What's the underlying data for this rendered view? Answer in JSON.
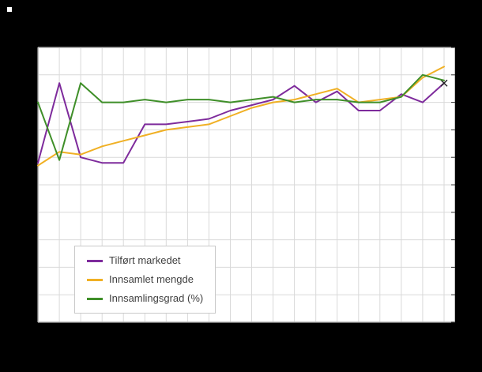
{
  "page": {
    "background": "#000000",
    "plot_background": "#ffffff",
    "grid_color": "#d9d9d9",
    "border_color": "#bdbdbd",
    "tick_color": "#333333",
    "marker_color": "#222222"
  },
  "chart_data": {
    "type": "line",
    "x": [
      1,
      2,
      3,
      4,
      5,
      6,
      7,
      8,
      9,
      10,
      11,
      12,
      13,
      14,
      15,
      16,
      17,
      18,
      19,
      20
    ],
    "x_tick_labels_visible": false,
    "ylim": [
      0,
      100
    ],
    "ytick_step": 10,
    "ytick_labels_visible": false,
    "grid": true,
    "legend_position": "inside-bottom-left",
    "series": [
      {
        "name": "Tilført markedet",
        "color": "#7e2b9c",
        "values": [
          58,
          87,
          60,
          58,
          58,
          72,
          72,
          73,
          74,
          77,
          79,
          81,
          86,
          80,
          84,
          77,
          77,
          83,
          80,
          87
        ],
        "end_marker": "x"
      },
      {
        "name": "Innsamlet mengde",
        "color": "#f0b024",
        "values": [
          57,
          62,
          61,
          64,
          66,
          68,
          70,
          71,
          72,
          75,
          78,
          80,
          81,
          83,
          85,
          80,
          81,
          82,
          89,
          93
        ],
        "end_marker": ""
      },
      {
        "name": "Innsamlingsgrad (%)",
        "color": "#3f8f29",
        "values": [
          80,
          59,
          87,
          80,
          80,
          81,
          80,
          81,
          81,
          80,
          81,
          82,
          80,
          81,
          81,
          80,
          80,
          82,
          90,
          88
        ],
        "end_marker": ""
      }
    ]
  }
}
